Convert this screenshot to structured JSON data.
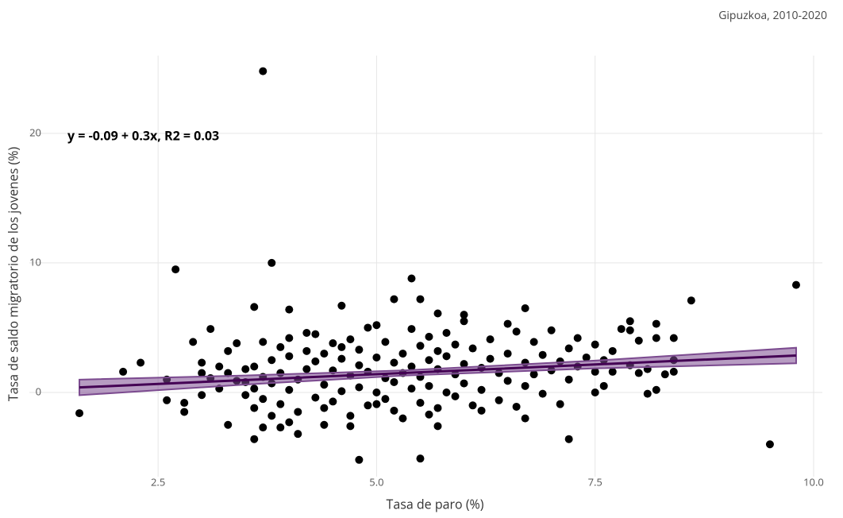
{
  "chart_data": {
    "type": "scatter",
    "subtitle": "Gipuzkoa, 2010-2020",
    "annotation": "y = -0.09 + 0.3x, R2 = 0.03",
    "x_label": "Tasa de paro (%)",
    "y_label": "Tasa de saldo migratorio de los jovenes (%)",
    "color": "#000000",
    "grid": true,
    "xlim": [
      1.3,
      10.1
    ],
    "ylim": [
      -6.5,
      26
    ],
    "xticks": [
      {
        "value": 2.5,
        "label": "2.5"
      },
      {
        "value": 5.0,
        "label": "5.0"
      },
      {
        "value": 7.5,
        "label": "7.5"
      },
      {
        "value": 10.0,
        "label": "10.0"
      }
    ],
    "yticks": [
      0,
      10,
      20
    ],
    "x": [
      3.7,
      3.8,
      2.7,
      9.8,
      5.4,
      8.6,
      6.7,
      3.6,
      4.6,
      4.0,
      1.6,
      4.8,
      5.5,
      9.5,
      7.2,
      3.6,
      4.1,
      2.1,
      2.3,
      2.6,
      2.6,
      2.8,
      2.8,
      2.9,
      3.1,
      3.0,
      3.0,
      3.2,
      3.3,
      3.4,
      3.3,
      5.2,
      5.5,
      5.7,
      6.0,
      6.5,
      7.9,
      8.2,
      8.4,
      8.2,
      8.1,
      7.5,
      8.4,
      8.4,
      7.6,
      7.2,
      7.1,
      6.7,
      5.7,
      4.7,
      3.9,
      3.7,
      3.5,
      3.5,
      3.5,
      3.6,
      3.6,
      3.6,
      3.7,
      3.7,
      3.7,
      3.8,
      3.8,
      3.8,
      3.9,
      3.9,
      3.9,
      4.0,
      4.0,
      4.0,
      4.1,
      4.1,
      4.2,
      4.2,
      4.2,
      4.3,
      4.3,
      4.3,
      4.4,
      4.4,
      4.4,
      4.5,
      4.5,
      4.5,
      4.6,
      4.6,
      4.6,
      4.7,
      4.7,
      4.7,
      4.8,
      4.8,
      4.8,
      4.9,
      4.9,
      4.9,
      5.0,
      5.0,
      5.0,
      5.1,
      5.1,
      5.1,
      5.2,
      5.2,
      5.2,
      5.3,
      5.3,
      5.3,
      5.4,
      5.4,
      5.4,
      5.5,
      5.5,
      5.5,
      5.6,
      5.6,
      5.6,
      5.7,
      5.7,
      5.7,
      5.8,
      5.8,
      5.8,
      5.9,
      5.9,
      5.9,
      6.0,
      6.0,
      6.0,
      6.1,
      6.1,
      6.2,
      6.2,
      6.3,
      6.3,
      6.4,
      6.4,
      6.5,
      6.5,
      6.6,
      6.6,
      6.7,
      6.7,
      6.8,
      6.8,
      6.9,
      6.9,
      7.0,
      7.0,
      7.1,
      7.2,
      7.3,
      7.3,
      7.4,
      7.5,
      7.5,
      7.6,
      7.7,
      7.7,
      7.8,
      7.9,
      7.9,
      8.0,
      8.0,
      8.1,
      8.2,
      8.3,
      4.0,
      4.4,
      5.0,
      5.6,
      6.2,
      3.4,
      3.2,
      3.1,
      3.0,
      3.3
    ],
    "values": [
      24.8,
      10.0,
      9.5,
      8.3,
      8.8,
      7.1,
      6.5,
      6.6,
      6.7,
      6.4,
      -1.6,
      -5.2,
      -5.1,
      -4.0,
      -3.6,
      -3.6,
      -3.2,
      1.6,
      2.3,
      1.0,
      -0.6,
      -1.5,
      -0.8,
      3.9,
      4.9,
      2.3,
      1.5,
      2.0,
      -2.5,
      3.8,
      3.2,
      7.2,
      7.2,
      6.1,
      6.0,
      5.3,
      5.5,
      5.3,
      4.2,
      0.2,
      -0.1,
      0.0,
      1.6,
      2.5,
      0.5,
      1.0,
      -0.9,
      -2.0,
      -2.6,
      -2.6,
      -2.7,
      -2.7,
      0.8,
      -0.2,
      1.8,
      -1.2,
      2.0,
      0.3,
      1.2,
      -0.5,
      3.9,
      2.5,
      -1.8,
      0.7,
      1.5,
      3.5,
      -0.9,
      4.2,
      0.2,
      2.8,
      1.0,
      -1.5,
      3.2,
      4.6,
      1.8,
      -0.4,
      2.4,
      4.5,
      0.6,
      3.0,
      -1.2,
      1.7,
      3.8,
      -0.7,
      2.6,
      0.1,
      3.5,
      1.3,
      -1.8,
      4.1,
      2.1,
      0.4,
      3.3,
      -1.0,
      1.6,
      5.0,
      2.7,
      0.0,
      5.2,
      1.1,
      3.9,
      -0.5,
      2.3,
      -1.4,
      0.8,
      3.0,
      1.5,
      -2.0,
      4.9,
      0.3,
      2.0,
      3.6,
      -0.8,
      1.2,
      4.3,
      0.5,
      2.5,
      -1.2,
      3.2,
      1.8,
      4.6,
      0.0,
      2.8,
      1.4,
      -0.3,
      3.7,
      2.2,
      5.5,
      0.7,
      -1.0,
      3.4,
      1.9,
      0.2,
      2.6,
      4.1,
      -0.6,
      1.5,
      3.0,
      0.9,
      4.7,
      -1.1,
      2.3,
      0.5,
      3.9,
      1.4,
      -0.1,
      2.9,
      4.8,
      1.7,
      2.4,
      3.4,
      2.0,
      4.2,
      2.7,
      1.6,
      3.7,
      2.5,
      1.6,
      3.2,
      4.9,
      2.1,
      4.8,
      1.5,
      4.0,
      1.8,
      4.2,
      1.4,
      -2.3,
      -2.5,
      -0.9,
      -1.7,
      -1.4,
      0.9,
      0.3,
      1.1,
      -0.2,
      1.5
    ],
    "fit": {
      "color": "#440154",
      "band_color": "#7b4a8f",
      "x": [
        1.6,
        3.5,
        5.3,
        7.5,
        9.8
      ],
      "values": [
        0.39,
        0.96,
        1.5,
        2.16,
        2.85
      ],
      "lower": [
        -0.21,
        0.61,
        1.3,
        1.86,
        2.25
      ],
      "upper": [
        0.99,
        1.31,
        1.7,
        2.46,
        3.45
      ]
    }
  }
}
